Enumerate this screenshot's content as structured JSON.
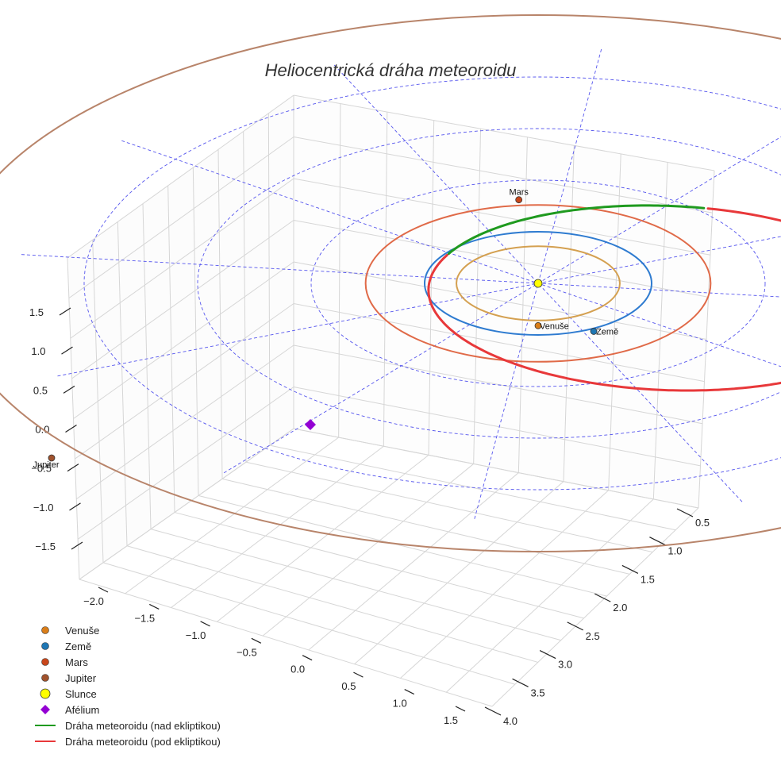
{
  "chart_data": {
    "type": "3d-line",
    "title": "Heliocentrická dráha meteoroidu",
    "axes": {
      "x_ticks": [
        "−2.0",
        "−1.5",
        "−1.0",
        "−0.5",
        "0.0",
        "0.5",
        "1.0",
        "1.5"
      ],
      "y_ticks": [
        "0.5",
        "1.0",
        "1.5",
        "2.0",
        "2.5",
        "3.0",
        "3.5",
        "4.0"
      ],
      "z_ticks": [
        "1.5",
        "1.0",
        "0.5",
        "0.0",
        "−0.5",
        "−1.0",
        "−1.5"
      ]
    },
    "planets": [
      {
        "name": "Venuše",
        "label": "Venuše",
        "a_au": 0.72,
        "color": "#d4a050",
        "marker": "#d97e1a"
      },
      {
        "name": "Země",
        "label": "Země",
        "a_au": 1.0,
        "color": "#2e7bd0",
        "marker": "#1f77b4"
      },
      {
        "name": "Mars",
        "label": "Mars",
        "a_au": 1.52,
        "color": "#e06a48",
        "marker": "#c8461b"
      },
      {
        "name": "Jupiter",
        "label": "Jupiter",
        "a_au": 5.2,
        "color": "#b8846a",
        "marker": "#a0522d"
      }
    ],
    "sun": {
      "name": "Slunce",
      "color": "#ffff00"
    },
    "aphelion": {
      "name": "Afélium",
      "color": "#9400d3"
    },
    "meteoroid_orbit": {
      "perihelion_au": 0.95,
      "aphelion_au": 3.3,
      "segments": [
        {
          "name": "Dráha meteoroidu (nad ekliptikou)",
          "color": "#1f9a1f"
        },
        {
          "name": "Dráha meteoroidu (pod ekliptikou)",
          "color": "#e8383a"
        }
      ]
    },
    "grid_circles_au": [
      1,
      2,
      3,
      4
    ],
    "legend": [
      {
        "label": "Venuše",
        "kind": "dot",
        "color": "#d97e1a"
      },
      {
        "label": "Země",
        "kind": "dot",
        "color": "#1f77b4"
      },
      {
        "label": "Mars",
        "kind": "dot",
        "color": "#c8461b"
      },
      {
        "label": "Jupiter",
        "kind": "dot",
        "color": "#a0522d"
      },
      {
        "label": "Slunce",
        "kind": "bigdot",
        "color": "#ffff00"
      },
      {
        "label": "Afélium",
        "kind": "diamond",
        "color": "#9400d3"
      },
      {
        "label": "Dráha meteoroidu (nad ekliptikou)",
        "kind": "line",
        "color": "#1f9a1f"
      },
      {
        "label": "Dráha meteoroidu (pod ekliptikou)",
        "kind": "line",
        "color": "#e8383a"
      }
    ]
  }
}
